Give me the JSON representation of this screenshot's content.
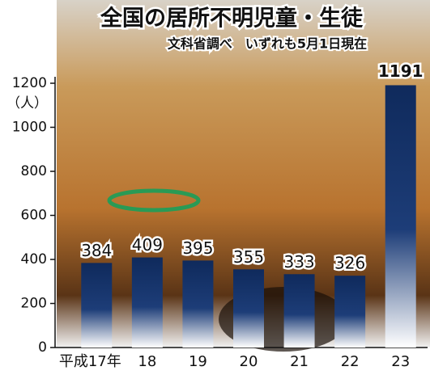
{
  "chart_data": {
    "type": "bar",
    "title": "全国の居所不明児童・生徒",
    "subtitle": "文科省調べ　いずれも5月1日現在",
    "y_label": "（人）",
    "categories": [
      "平成17年",
      "18",
      "19",
      "20",
      "21",
      "22",
      "23"
    ],
    "values": [
      384,
      409,
      395,
      355,
      333,
      326,
      1191
    ],
    "color": "#0f2a5c",
    "ylim": [
      0,
      1200
    ],
    "yticks": [
      0,
      200,
      400,
      600,
      800,
      1000,
      1200
    ]
  }
}
